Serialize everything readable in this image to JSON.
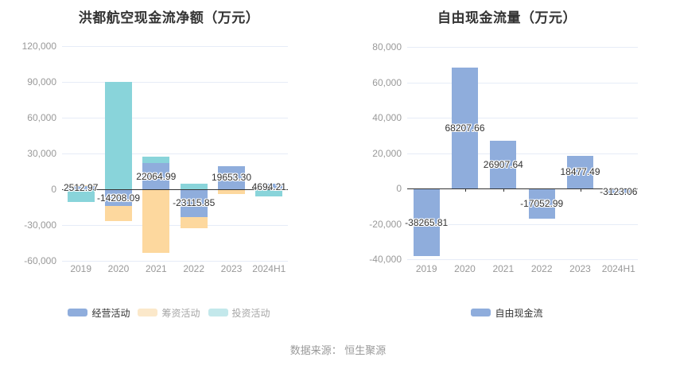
{
  "caption": "数据来源： 恒生聚源",
  "colors": {
    "bar_blue": "#8FADDC",
    "bar_orange": "#FDD89E",
    "bar_teal": "#89D4DA",
    "gridline": "#E6ECF7",
    "axis_line": "#333333",
    "axis_tick_label": "#999999",
    "data_label": "#333333",
    "title": "#333333",
    "caption": "#999999"
  },
  "chart_data": [
    {
      "type": "bar",
      "stacked": true,
      "title": "洪都航空现金流净额（万元）",
      "categories": [
        "2019",
        "2020",
        "2021",
        "2022",
        "2023",
        "2024H1"
      ],
      "ylim": [
        -60000,
        120000
      ],
      "ytick_step": 30000,
      "grid": true,
      "legend_position": "bottom",
      "series": [
        {
          "name": "经营活动",
          "color": "#8FADDC",
          "labeled": true,
          "values": [
            2512.97,
            -14208.09,
            22064.99,
            -23115.85,
            19653.3,
            4694.21
          ]
        },
        {
          "name": "筹资活动",
          "color": "#FDD89E",
          "labeled": false,
          "values": [
            600,
            -12800,
            -53300,
            -9700,
            -3800,
            0
          ]
        },
        {
          "name": "投资活动",
          "color": "#89D4DA",
          "labeled": false,
          "values": [
            -10500,
            90000,
            5400,
            5000,
            0,
            -5800
          ]
        }
      ],
      "legend": [
        {
          "label": "经营活动",
          "swatch": "#8FADDC",
          "muted": false
        },
        {
          "label": "筹资活动",
          "swatch": "#FBE8CA",
          "muted": true
        },
        {
          "label": "投资活动",
          "swatch": "#C3E8EB",
          "muted": true
        }
      ]
    },
    {
      "type": "bar",
      "stacked": false,
      "title": "自由现金流量（万元）",
      "categories": [
        "2019",
        "2020",
        "2021",
        "2022",
        "2023",
        "2024H1"
      ],
      "ylim": [
        -40000,
        80000
      ],
      "ytick_step": 20000,
      "grid": true,
      "legend_position": "bottom",
      "series": [
        {
          "name": "自由现金流",
          "color": "#8FADDC",
          "labeled": true,
          "values": [
            -38265.81,
            68207.66,
            26907.64,
            -17052.99,
            18477.49,
            -3123.06
          ]
        }
      ],
      "legend": [
        {
          "label": "自由现金流",
          "swatch": "#8FADDC",
          "muted": false
        }
      ]
    }
  ]
}
